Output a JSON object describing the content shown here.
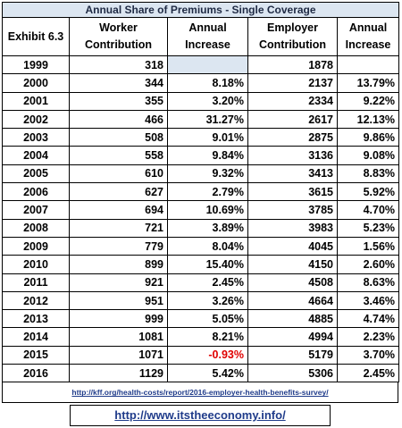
{
  "title": "Annual Share of Premiums - Single Coverage",
  "table": {
    "header": [
      "Exhibit 6.3",
      "Worker Contribution",
      "Annual Increase",
      "Employer Contribution",
      "Annual Increase"
    ],
    "rows": [
      [
        "1999",
        "318",
        null,
        "1878",
        null
      ],
      [
        "2000",
        "344",
        "8.18%",
        "2137",
        "13.79%"
      ],
      [
        "2001",
        "355",
        "3.20%",
        "2334",
        "9.22%"
      ],
      [
        "2002",
        "466",
        "31.27%",
        "2617",
        "12.13%"
      ],
      [
        "2003",
        "508",
        "9.01%",
        "2875",
        "9.86%"
      ],
      [
        "2004",
        "558",
        "9.84%",
        "3136",
        "9.08%"
      ],
      [
        "2005",
        "610",
        "9.32%",
        "3413",
        "8.83%"
      ],
      [
        "2006",
        "627",
        "2.79%",
        "3615",
        "5.92%"
      ],
      [
        "2007",
        "694",
        "10.69%",
        "3785",
        "4.70%"
      ],
      [
        "2008",
        "721",
        "3.89%",
        "3983",
        "5.23%"
      ],
      [
        "2009",
        "779",
        "8.04%",
        "4045",
        "1.56%"
      ],
      [
        "2010",
        "899",
        "15.40%",
        "4150",
        "2.60%"
      ],
      [
        "2011",
        "921",
        "2.45%",
        "4508",
        "8.63%"
      ],
      [
        "2012",
        "951",
        "3.26%",
        "4664",
        "3.46%"
      ],
      [
        "2013",
        "999",
        "5.05%",
        "4885",
        "4.74%"
      ],
      [
        "2014",
        "1081",
        "8.21%",
        "4994",
        "2.23%"
      ],
      [
        "2015",
        "1071",
        "-0.93%",
        "5179",
        "3.70%"
      ],
      [
        "2016",
        "1129",
        "5.42%",
        "5306",
        "2.45%"
      ]
    ]
  },
  "source": "http://kff.org/health-costs/report/2016-employer-health-benefits-survey/",
  "site": "http://www.itstheeconomy.info/"
}
